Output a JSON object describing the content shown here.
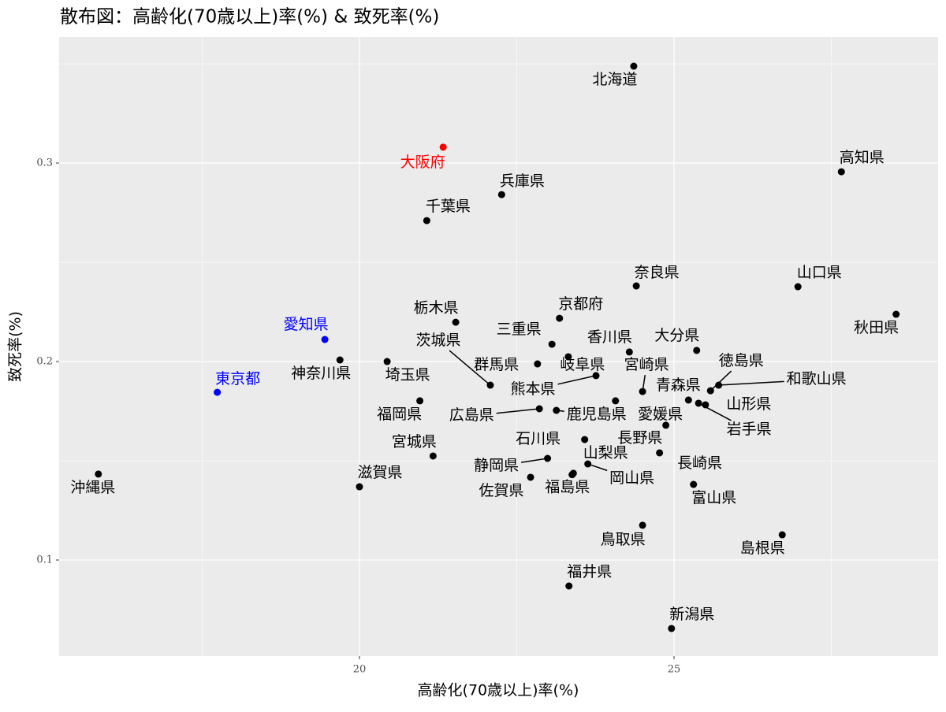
{
  "chart_data": {
    "type": "scatter",
    "title": "散布図：高齢化(70歳以上)率(%) & 致死率(%)",
    "x_label": "高齢化(70歳以上)率(%)",
    "y_label": "致死率(%)",
    "labels": [
      "北海道",
      "大阪府",
      "高知県",
      "兵庫県",
      "千葉県",
      "奈良県",
      "山口県",
      "秋田県",
      "京都府",
      "栃木県",
      "愛知県",
      "三重県",
      "茨城県",
      "香川県",
      "大分県",
      "神奈川県",
      "埼玉県",
      "群馬県",
      "岐阜県",
      "宮崎県",
      "徳島県",
      "和歌山県",
      "東京都",
      "熊本県",
      "青森県",
      "福岡県",
      "山形県",
      "広島県",
      "鹿児島県",
      "愛媛県",
      "岩手県",
      "石川県",
      "長野県",
      "宮城県",
      "山梨県",
      "静岡県",
      "長崎県",
      "滋賀県",
      "岡山県",
      "沖縄県",
      "佐賀県",
      "福島県",
      "富山県",
      "鳥取県",
      "島根県",
      "福井県",
      "新潟県"
    ],
    "x": [
      24.36,
      21.33,
      27.66,
      22.26,
      21.07,
      24.4,
      26.97,
      28.53,
      23.18,
      21.53,
      19.45,
      23.06,
      22.08,
      24.29,
      25.36,
      19.69,
      20.44,
      22.83,
      23.32,
      24.5,
      25.58,
      25.71,
      17.74,
      23.76,
      25.23,
      20.96,
      25.5,
      22.86,
      23.13,
      24.87,
      25.39,
      23.58,
      24.07,
      21.17,
      23.4,
      22.99,
      24.77,
      20.0,
      23.63,
      15.85,
      22.72,
      23.38,
      25.31,
      24.5,
      26.72,
      23.33,
      24.96
    ],
    "y": [
      0.3488,
      0.308,
      0.2956,
      0.2841,
      0.271,
      0.2381,
      0.2377,
      0.2238,
      0.2218,
      0.2198,
      0.2111,
      0.2087,
      0.1881,
      0.2048,
      0.2056,
      0.2008,
      0.2,
      0.1988,
      0.2024,
      0.1849,
      0.1853,
      0.1881,
      0.1845,
      0.1929,
      0.1806,
      0.1802,
      0.1782,
      0.1762,
      0.1754,
      0.1679,
      0.179,
      0.1607,
      0.1802,
      0.1524,
      0.1437,
      0.1512,
      0.154,
      0.1369,
      0.1484,
      0.1433,
      0.1417,
      0.143,
      0.1381,
      0.1175,
      0.1127,
      0.0869,
      0.0655
    ],
    "colors": [
      "#000000",
      "#ff0000",
      "#000000",
      "#000000",
      "#000000",
      "#000000",
      "#000000",
      "#000000",
      "#000000",
      "#000000",
      "#0000ff",
      "#000000",
      "#000000",
      "#000000",
      "#000000",
      "#000000",
      "#000000",
      "#000000",
      "#000000",
      "#000000",
      "#000000",
      "#000000",
      "#0000ff",
      "#000000",
      "#000000",
      "#000000",
      "#000000",
      "#000000",
      "#000000",
      "#000000",
      "#000000",
      "#000000",
      "#000000",
      "#000000",
      "#000000",
      "#000000",
      "#000000",
      "#000000",
      "#000000",
      "#000000",
      "#000000",
      "#000000",
      "#000000",
      "#000000",
      "#000000",
      "#000000",
      "#000000"
    ],
    "xlim": [
      15.226,
      29.198
    ],
    "ylim": [
      0.0516,
      0.3635
    ],
    "xticks": [
      20,
      25
    ],
    "yticks": [
      0.1,
      0.2,
      0.3
    ],
    "minor_xticks": [
      17.5,
      22.5,
      27.5
    ],
    "minor_yticks": [
      0.15,
      0.25,
      0.35
    ],
    "grid": true
  }
}
